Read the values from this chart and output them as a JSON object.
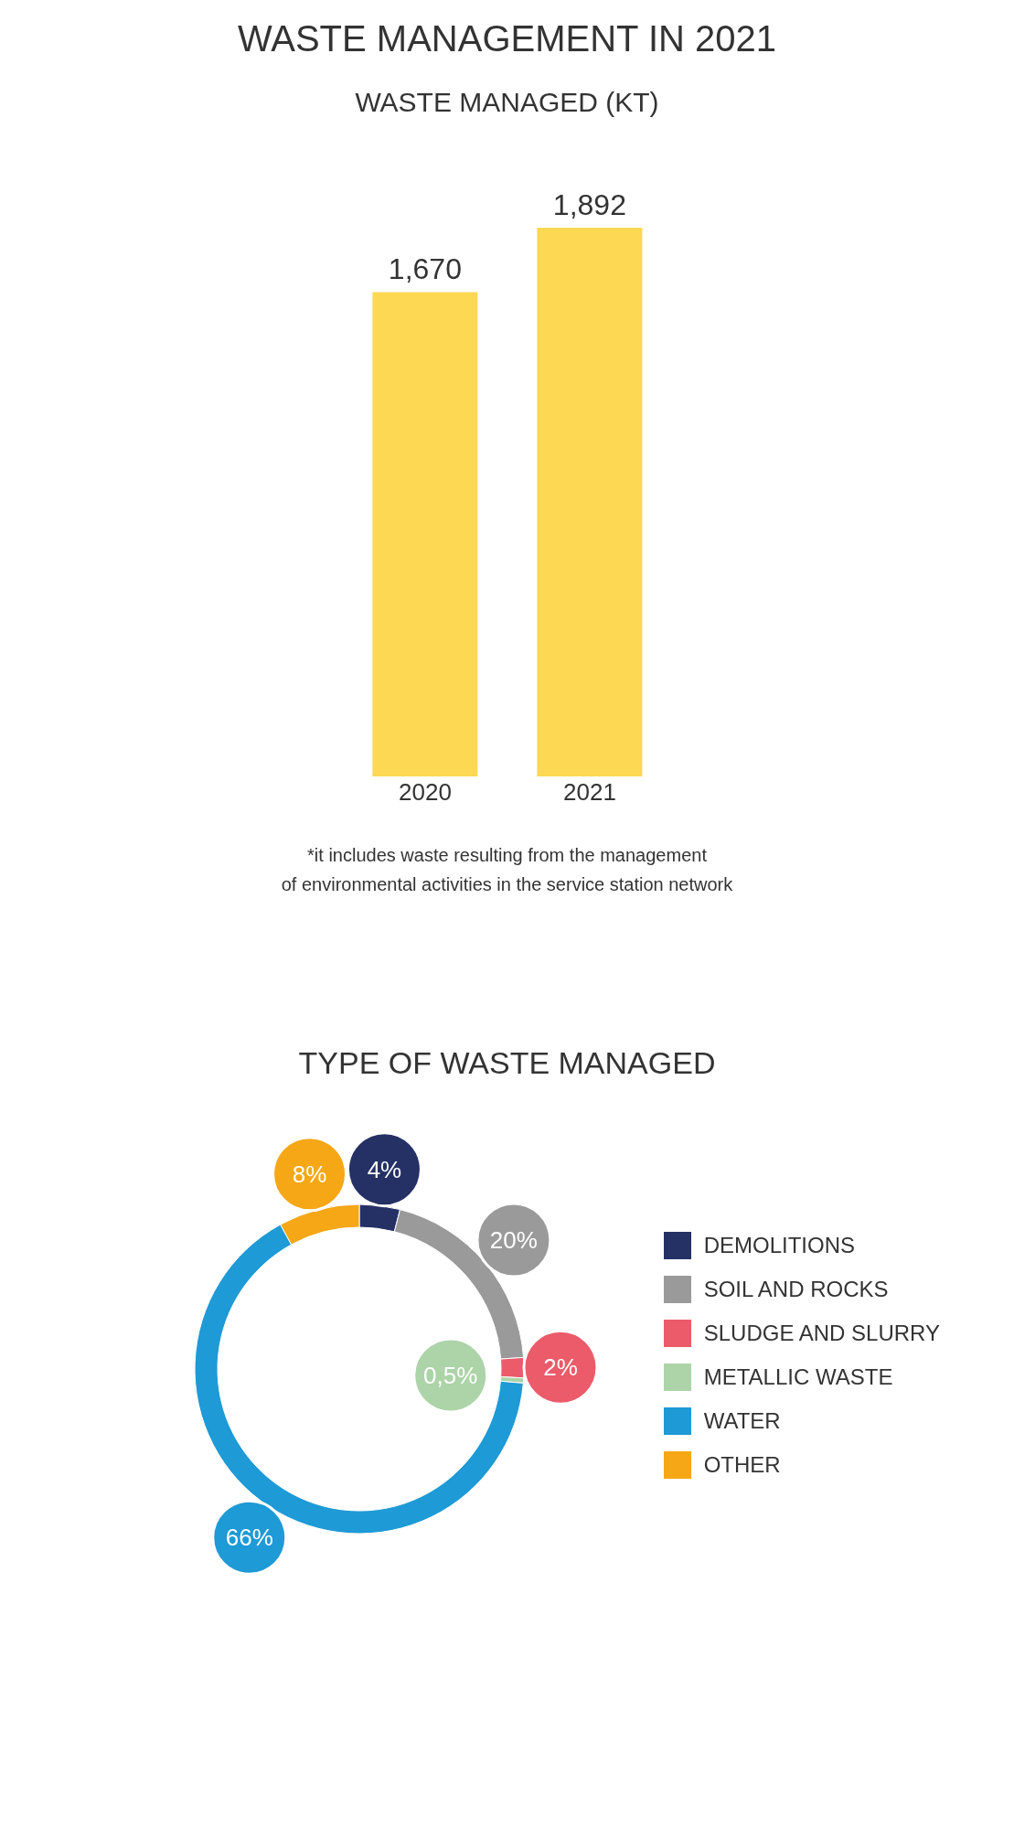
{
  "chart_data": [
    {
      "type": "bar",
      "title": "WASTE MANAGEMENT IN 2021",
      "subtitle": "WASTE MANAGED (KT)",
      "categories": [
        "2020",
        "2021"
      ],
      "values": [
        1670,
        1892
      ],
      "color": "#fcd853",
      "value_labels": [
        "1,670",
        "1,892"
      ],
      "annotations": [
        "*it includes waste resulting from the management\nof environmental activities in the service station network"
      ]
    },
    {
      "type": "donut",
      "title": "TYPE OF WASTE MANAGED",
      "categories": [
        "DEMOLITIONS",
        "SOIL AND ROCKS",
        "SLUDGE AND SLURRY",
        "METALLIC WASTE",
        "WATER",
        "OTHER"
      ],
      "values": [
        4,
        20,
        2,
        0.5,
        66,
        8
      ],
      "colors": [
        "#253165",
        "#9a9a9a",
        "#eb5b6a",
        "#acd4a8",
        "#1e9ad6",
        "#f5a716"
      ],
      "value_labels": [
        "4%",
        "20%",
        "2%",
        "0,5%",
        "66%",
        "8%"
      ],
      "legend": "right"
    }
  ]
}
